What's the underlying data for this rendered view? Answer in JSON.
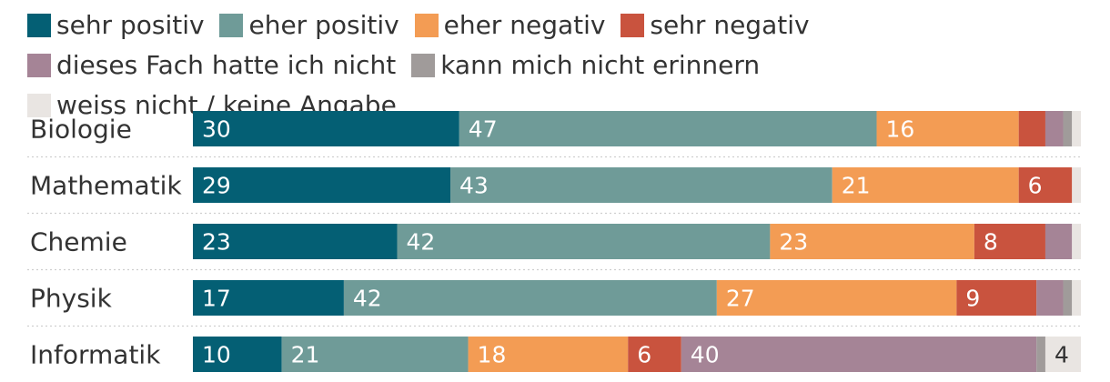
{
  "chart_data": {
    "type": "bar",
    "orientation": "horizontal",
    "stacked": true,
    "title": "",
    "xlabel": "",
    "ylabel": "",
    "xlim": [
      0,
      100
    ],
    "legend_position": "top",
    "grid": false,
    "categories": [
      "Biologie",
      "Mathematik",
      "Chemie",
      "Physik",
      "Informatik"
    ],
    "series": [
      {
        "name": "sehr positiv",
        "color": "#045f74",
        "values": [
          30,
          29,
          23,
          17,
          10
        ],
        "labels": [
          "30",
          "29",
          "23",
          "17",
          "10"
        ]
      },
      {
        "name": "eher positiv",
        "color": "#6f9b98",
        "values": [
          47,
          43,
          42,
          42,
          21
        ],
        "labels": [
          "47",
          "43",
          "42",
          "42",
          "21"
        ]
      },
      {
        "name": "eher negativ",
        "color": "#f39c54",
        "values": [
          16,
          21,
          23,
          27,
          18
        ],
        "labels": [
          "16",
          "21",
          "23",
          "27",
          "18"
        ]
      },
      {
        "name": "sehr negativ",
        "color": "#c9533e",
        "values": [
          3,
          6,
          8,
          9,
          6
        ],
        "labels": [
          "",
          "6",
          "8",
          "9",
          "6"
        ]
      },
      {
        "name": "dieses Fach hatte ich nicht",
        "color": "#a58496",
        "values": [
          2,
          0,
          3,
          3,
          40
        ],
        "labels": [
          "",
          "",
          "",
          "",
          "40"
        ]
      },
      {
        "name": "kann mich nicht erinnern",
        "color": "#a09b9a",
        "values": [
          1,
          0,
          0,
          1,
          1
        ],
        "labels": [
          "",
          "",
          "",
          "",
          ""
        ]
      },
      {
        "name": "weiss nicht / keine Angabe",
        "color": "#e9e5e2",
        "values": [
          1,
          1,
          1,
          1,
          4
        ],
        "labels": [
          "",
          "",
          "",
          "",
          "4"
        ]
      }
    ]
  }
}
